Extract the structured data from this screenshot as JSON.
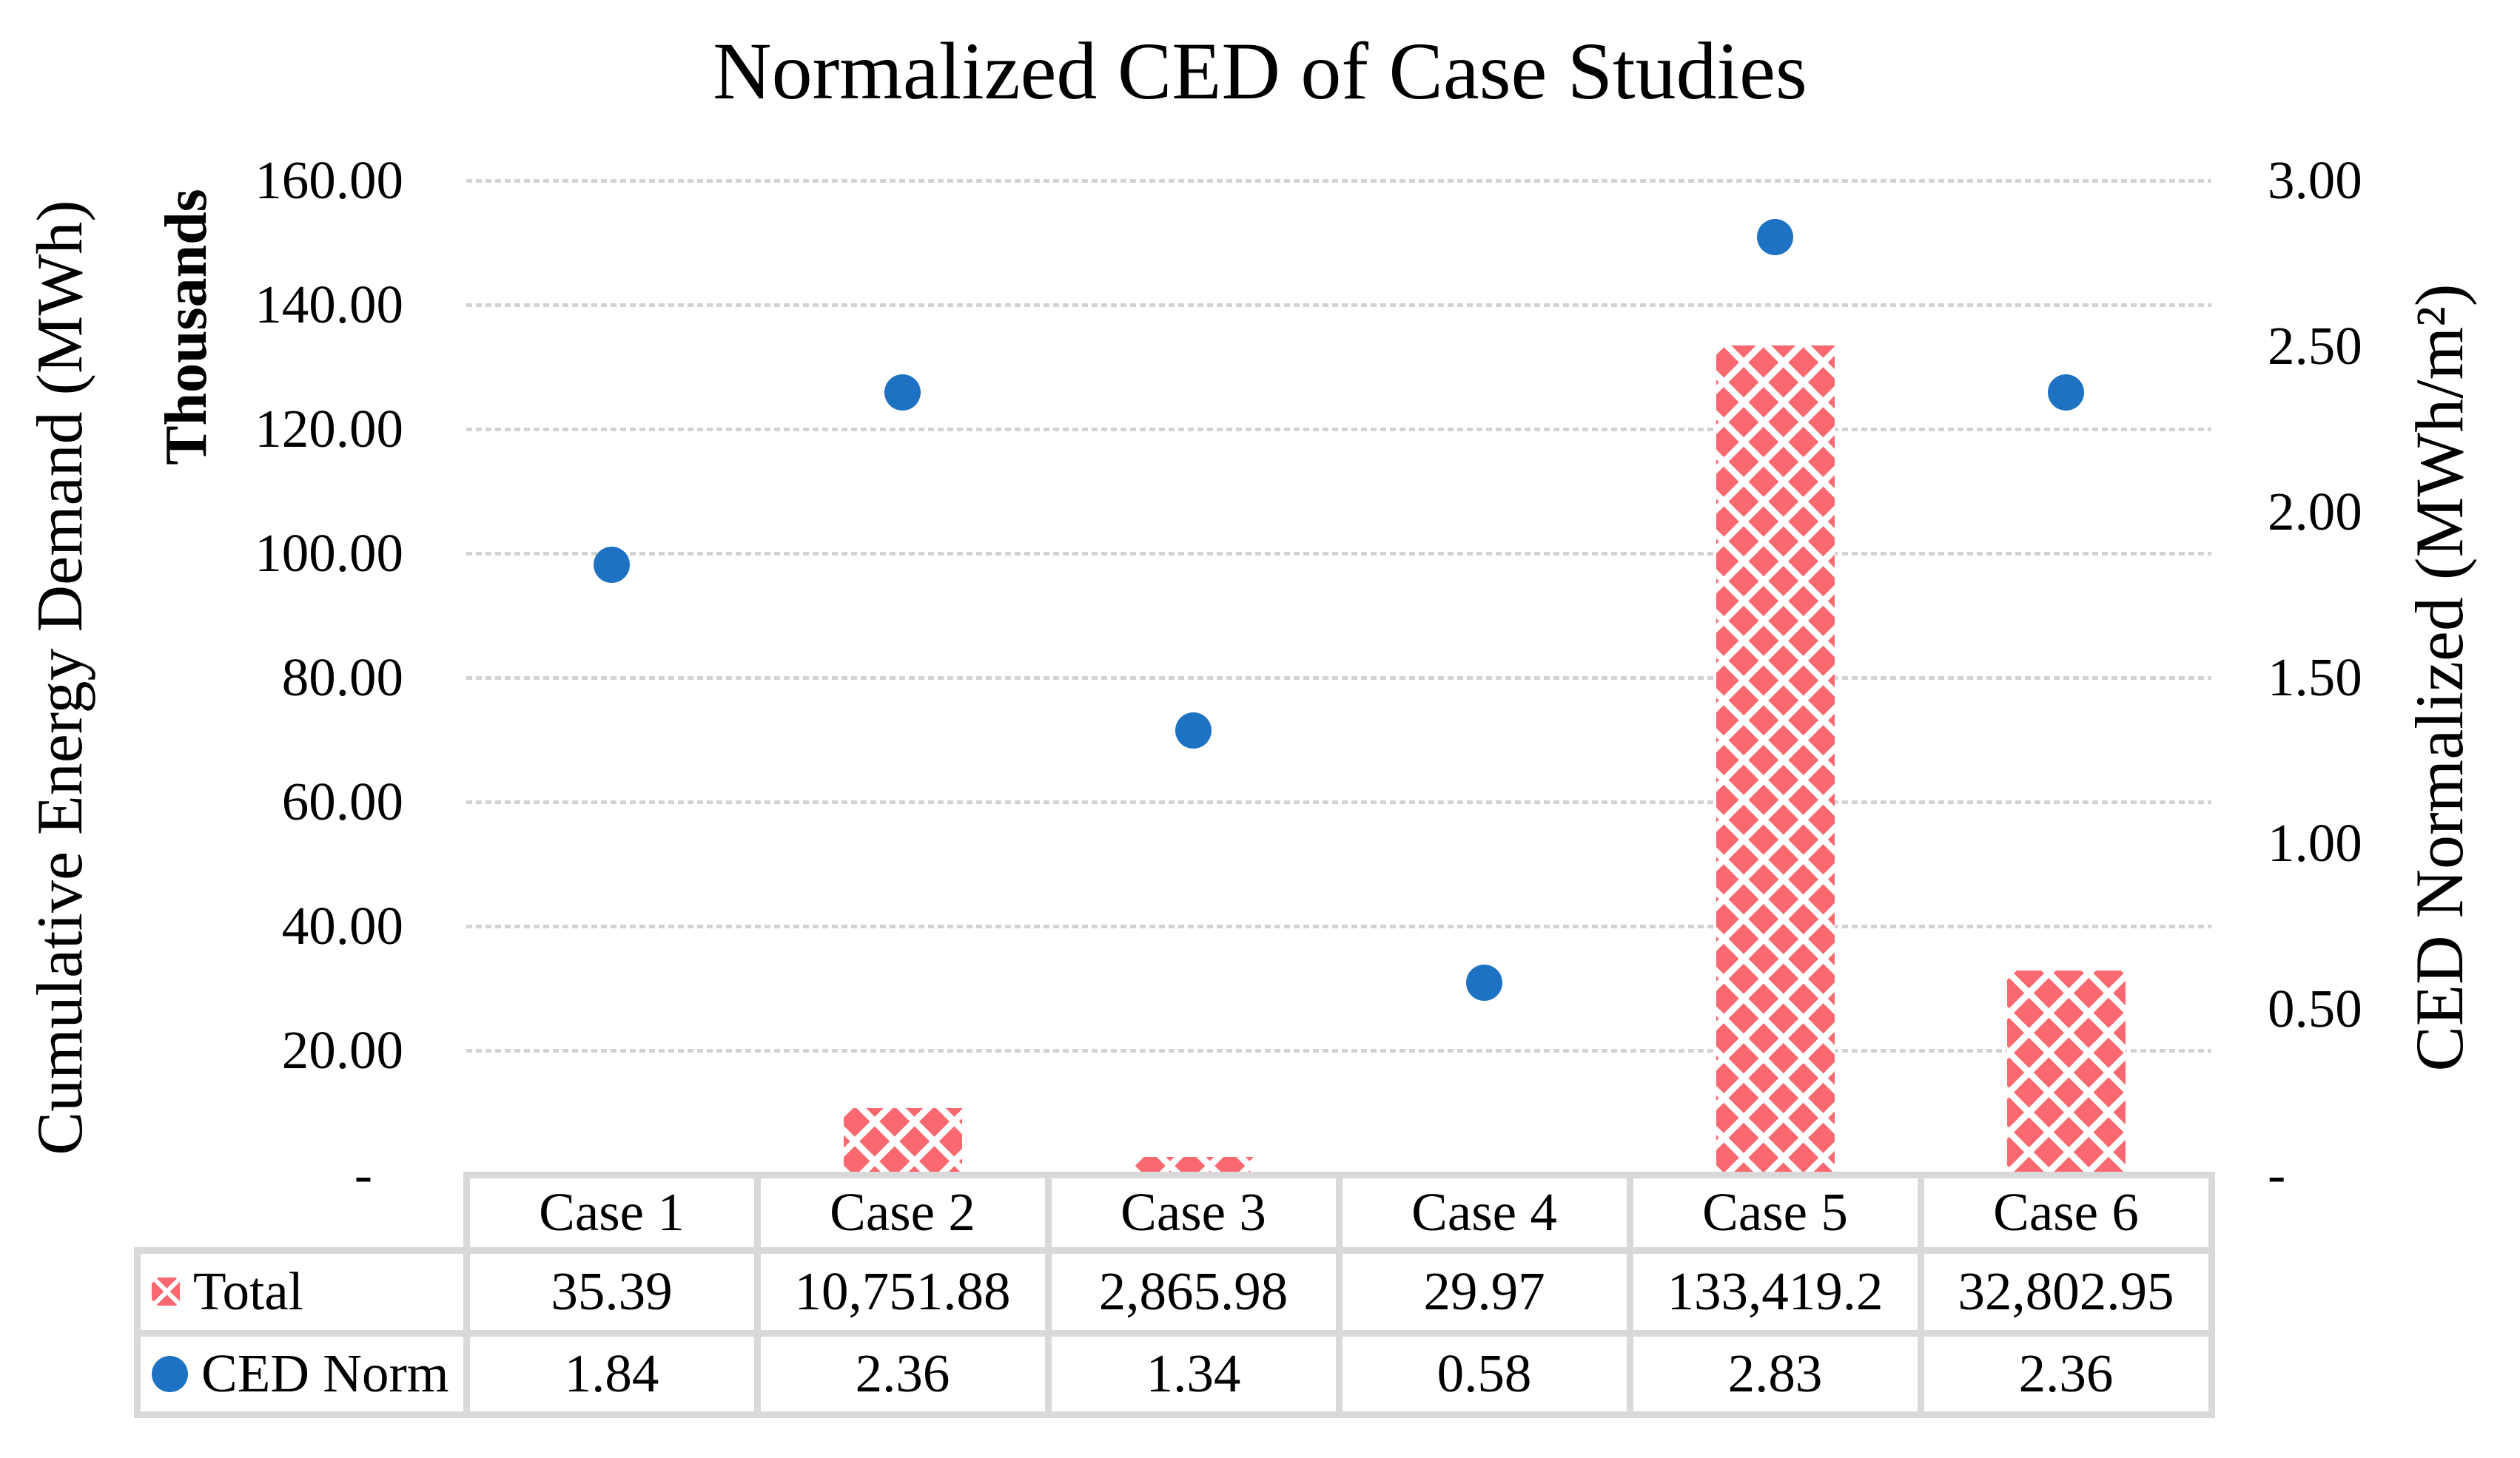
{
  "chart_data": {
    "type": "combo",
    "title": "Normalized CED of Case Studies",
    "categories": [
      "Case 1",
      "Case 2",
      "Case 3",
      "Case 4",
      "Case 5",
      "Case 6"
    ],
    "series": [
      {
        "name": "Total",
        "type": "bar",
        "axis": "left",
        "values": [
          35.39,
          10751.88,
          2865.98,
          29.97,
          133419.2,
          32802.95
        ],
        "labels": [
          "35.39",
          "10,751.88",
          "2,865.98",
          "29.97",
          "133,419.2",
          "32,802.95"
        ],
        "color": "#F9696F",
        "pattern": "white-diagonal-crosshatch"
      },
      {
        "name": "CED Norm",
        "type": "scatter",
        "axis": "right",
        "values": [
          1.84,
          2.36,
          1.34,
          0.58,
          2.83,
          2.36
        ],
        "labels": [
          "1.84",
          "2.36",
          "1.34",
          "0.58",
          "2.83",
          "2.36"
        ],
        "color": "#1D72C3",
        "marker": "circle"
      }
    ],
    "left_axis": {
      "title": "Cumulative Energy Demand (MWh)",
      "units_label": "Thousands",
      "min": 0,
      "max": 160,
      "step": 20,
      "tick_labels": [
        "160.00",
        "140.00",
        "120.00",
        "100.00",
        "80.00",
        "60.00",
        "40.00",
        "20.00",
        "-"
      ]
    },
    "right_axis": {
      "title": "CED Normalized (MWh/m²)",
      "min": 0,
      "max": 3,
      "step": 0.5,
      "tick_labels": [
        "3.00",
        "2.50",
        "2.00",
        "1.50",
        "1.00",
        "0.50",
        "-"
      ]
    },
    "grid": {
      "horizontal": true,
      "style": "dashed",
      "color": "#D3D3D3"
    },
    "legend_position": "table-left",
    "colors": {
      "table_border": "#D9D9D9",
      "text": "#000000",
      "background": "#FFFFFF"
    }
  }
}
